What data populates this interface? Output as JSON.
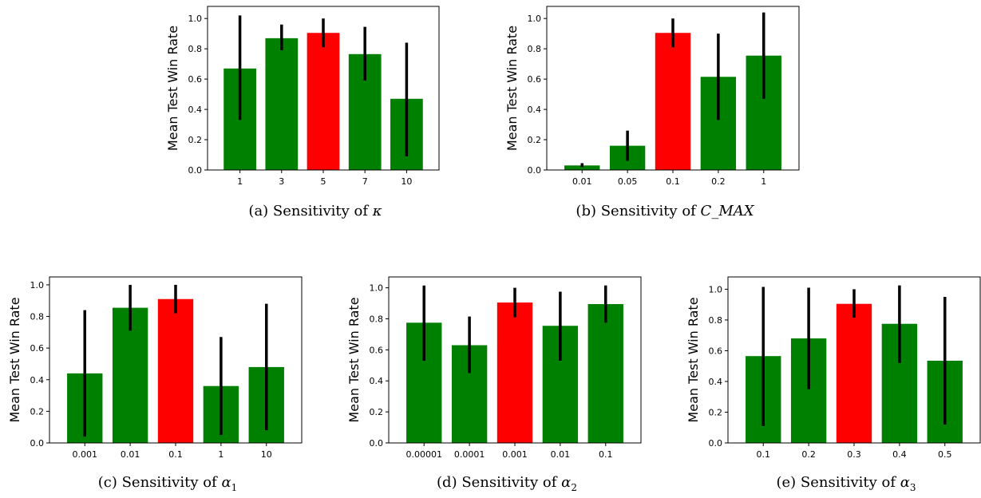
{
  "colors": {
    "bar": "#008000",
    "highlight": "#ff0000",
    "errorbar": "#000000"
  },
  "chart_data": [
    {
      "type": "bar",
      "caption": {
        "prefix": "(a) Sensitivity of ",
        "symbol": "κ",
        "subscript": ""
      },
      "ylabel": "Mean Test Win Rate",
      "xlabel": "",
      "ylim": [
        0.0,
        1.08
      ],
      "yticks": [
        "0.0",
        "0.2",
        "0.4",
        "0.6",
        "0.8",
        "1.0"
      ],
      "categories": [
        "1",
        "3",
        "5",
        "7",
        "10"
      ],
      "values": [
        0.67,
        0.87,
        0.905,
        0.765,
        0.47
      ],
      "error_low": [
        0.33,
        0.79,
        0.81,
        0.59,
        0.09
      ],
      "error_high": [
        1.02,
        0.96,
        1.0,
        0.945,
        0.84
      ],
      "highlight_index": 2
    },
    {
      "type": "bar",
      "caption": {
        "prefix": "(b) Sensitivity of ",
        "symbol": "C_MAX",
        "subscript": ""
      },
      "ylabel": "Mean Test Win Rate",
      "xlabel": "",
      "ylim": [
        0.0,
        1.08
      ],
      "yticks": [
        "0.0",
        "0.2",
        "0.4",
        "0.6",
        "0.8",
        "1.0"
      ],
      "categories": [
        "0.01",
        "0.05",
        "0.1",
        "0.2",
        "1"
      ],
      "values": [
        0.03,
        0.16,
        0.905,
        0.615,
        0.755
      ],
      "error_low": [
        0.02,
        0.06,
        0.81,
        0.33,
        0.47
      ],
      "error_high": [
        0.045,
        0.26,
        1.0,
        0.9,
        1.04
      ],
      "highlight_index": 2
    },
    {
      "type": "bar",
      "caption": {
        "prefix": "(c) Sensitivity of ",
        "symbol": "α",
        "subscript": "1"
      },
      "ylabel": "Mean Test Win Rate",
      "xlabel": "",
      "ylim": [
        0.0,
        1.05
      ],
      "yticks": [
        "0.0",
        "0.2",
        "0.4",
        "0.6",
        "0.8",
        "1.0"
      ],
      "categories": [
        "0.001",
        "0.01",
        "0.1",
        "1",
        "10"
      ],
      "values": [
        0.44,
        0.855,
        0.91,
        0.36,
        0.48
      ],
      "error_low": [
        0.04,
        0.71,
        0.82,
        0.05,
        0.08
      ],
      "error_high": [
        0.84,
        1.0,
        1.0,
        0.67,
        0.88
      ],
      "highlight_index": 2
    },
    {
      "type": "bar",
      "caption": {
        "prefix": "(d) Sensitivity of ",
        "symbol": "α",
        "subscript": "2"
      },
      "ylabel": "Mean Test Win Rate",
      "xlabel": "",
      "ylim": [
        0.0,
        1.07
      ],
      "yticks": [
        "0.0",
        "0.2",
        "0.4",
        "0.6",
        "0.8",
        "1.0"
      ],
      "categories": [
        "0.00001",
        "0.0001",
        "0.001",
        "0.01",
        "0.1"
      ],
      "values": [
        0.775,
        0.63,
        0.905,
        0.755,
        0.895
      ],
      "error_low": [
        0.53,
        0.45,
        0.81,
        0.53,
        0.775
      ],
      "error_high": [
        1.015,
        0.815,
        1.0,
        0.975,
        1.015
      ],
      "highlight_index": 2
    },
    {
      "type": "bar",
      "caption": {
        "prefix": "(e) Sensitivity of ",
        "symbol": "α",
        "subscript": "3"
      },
      "ylabel": "Mean Test Win Rate",
      "xlabel": "",
      "ylim": [
        0.0,
        1.08
      ],
      "yticks": [
        "0.0",
        "0.2",
        "0.4",
        "0.6",
        "0.8",
        "1.0"
      ],
      "categories": [
        "0.1",
        "0.2",
        "0.3",
        "0.4",
        "0.5"
      ],
      "values": [
        0.565,
        0.68,
        0.905,
        0.775,
        0.535
      ],
      "error_low": [
        0.11,
        0.35,
        0.815,
        0.52,
        0.12
      ],
      "error_high": [
        1.015,
        1.01,
        1.0,
        1.025,
        0.95
      ],
      "highlight_index": 2
    }
  ]
}
